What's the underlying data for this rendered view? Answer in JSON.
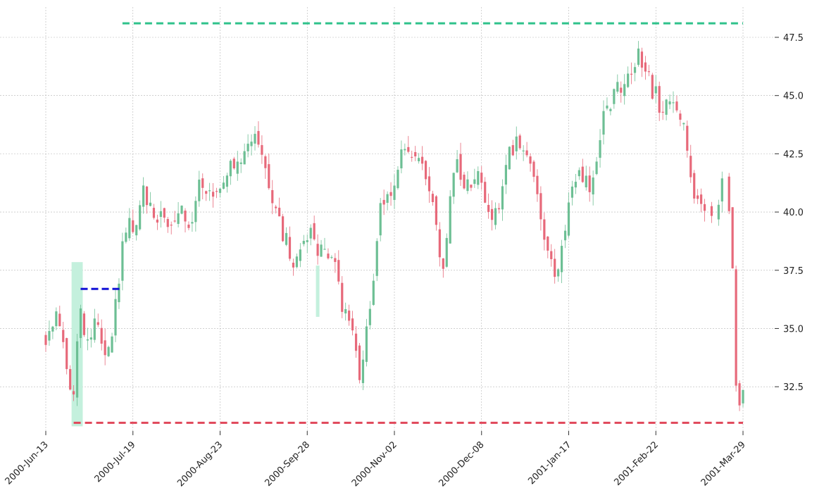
{
  "chart_data": {
    "type": "candlestick",
    "x_tick_labels": [
      "2000-Jun-13",
      "2000-Jul-19",
      "2000-Aug-23",
      "2000-Sep-28",
      "2000-Nov-02",
      "2000-Dec-08",
      "2001-Jan-17",
      "2001-Feb-22",
      "2001-Mar-29"
    ],
    "y_tick_labels": [
      "32.5",
      "35.0",
      "37.5",
      "40.0",
      "42.5",
      "45.0",
      "47.5"
    ],
    "y_ticks": [
      32.5,
      35.0,
      37.5,
      40.0,
      42.5,
      45.0,
      47.5
    ],
    "ylim": [
      30.6,
      48.8
    ],
    "bar_count": 201,
    "grid": true,
    "y_axis_side": "right",
    "colors": {
      "up": "#6dbf94",
      "down": "#e7697a",
      "highlight": "#c4f0dd",
      "resistance_line": "#2ec28b",
      "support_line": "#e0475a",
      "entry_line": "#1212d6"
    },
    "annotations": {
      "highlight_band": {
        "x_start": 7.4,
        "x_end": 10.6,
        "y_low": 30.8,
        "y_high": 37.85
      },
      "small_highlight": {
        "x_start": 77.5,
        "x_end": 78.5,
        "y_low": 35.5,
        "y_high": 37.7
      },
      "resistance_line": {
        "x_start": 22,
        "x_end": 200,
        "y": 48.1
      },
      "support_line": {
        "x_start": 8,
        "x_end": 200,
        "y": 30.95
      },
      "entry_line": {
        "x_start": 10,
        "x_end": 21.5,
        "y": 36.7
      }
    },
    "anchors": [
      [
        0,
        34.6
      ],
      [
        3,
        35.8
      ],
      [
        5,
        34.8
      ],
      [
        7,
        32.2
      ],
      [
        8,
        31.8
      ],
      [
        9,
        34.5
      ],
      [
        10,
        35.6
      ],
      [
        12,
        34.5
      ],
      [
        14,
        35.5
      ],
      [
        16,
        34.2
      ],
      [
        18,
        34.0
      ],
      [
        20,
        36.0
      ],
      [
        22,
        38.5
      ],
      [
        24,
        39.6
      ],
      [
        26,
        39.5
      ],
      [
        28,
        40.9
      ],
      [
        30,
        40.2
      ],
      [
        32,
        39.4
      ],
      [
        34,
        40.0
      ],
      [
        36,
        39.2
      ],
      [
        38,
        40.0
      ],
      [
        40,
        39.8
      ],
      [
        42,
        39.5
      ],
      [
        44,
        41.0
      ],
      [
        46,
        40.5
      ],
      [
        48,
        40.7
      ],
      [
        50,
        41.2
      ],
      [
        52,
        42.0
      ],
      [
        54,
        41.8
      ],
      [
        56,
        42.5
      ],
      [
        58,
        43.3
      ],
      [
        60,
        43.4
      ],
      [
        62,
        42.8
      ],
      [
        64,
        41.2
      ],
      [
        66,
        40.0
      ],
      [
        68,
        39.0
      ],
      [
        70,
        38.3
      ],
      [
        72,
        37.8
      ],
      [
        74,
        38.5
      ],
      [
        76,
        39.4
      ],
      [
        78,
        38.5
      ],
      [
        80,
        38.6
      ],
      [
        82,
        38.3
      ],
      [
        84,
        36.8
      ],
      [
        86,
        35.5
      ],
      [
        88,
        34.5
      ],
      [
        90,
        33.2
      ],
      [
        92,
        35.0
      ],
      [
        94,
        37.5
      ],
      [
        96,
        40.0
      ],
      [
        98,
        41.2
      ],
      [
        100,
        41.0
      ],
      [
        102,
        42.3
      ],
      [
        104,
        42.5
      ],
      [
        106,
        42.3
      ],
      [
        108,
        42.0
      ],
      [
        110,
        40.8
      ],
      [
        112,
        39.3
      ],
      [
        114,
        37.6
      ],
      [
        116,
        40.5
      ],
      [
        118,
        42.0
      ],
      [
        120,
        41.3
      ],
      [
        122,
        40.8
      ],
      [
        124,
        41.7
      ],
      [
        126,
        40.7
      ],
      [
        128,
        39.3
      ],
      [
        130,
        40.3
      ],
      [
        132,
        42.3
      ],
      [
        134,
        42.6
      ],
      [
        136,
        43.0
      ],
      [
        138,
        42.7
      ],
      [
        140,
        41.5
      ],
      [
        142,
        39.5
      ],
      [
        144,
        38.2
      ],
      [
        146,
        37.2
      ],
      [
        148,
        38.2
      ],
      [
        150,
        40.5
      ],
      [
        152,
        41.5
      ],
      [
        154,
        41.2
      ],
      [
        156,
        41.3
      ],
      [
        158,
        42.4
      ],
      [
        160,
        44.0
      ],
      [
        162,
        44.8
      ],
      [
        164,
        45.2
      ],
      [
        166,
        45.7
      ],
      [
        168,
        46.2
      ],
      [
        170,
        46.6
      ],
      [
        172,
        46.0
      ],
      [
        174,
        45.2
      ],
      [
        176,
        44.7
      ],
      [
        178,
        44.5
      ],
      [
        180,
        44.6
      ],
      [
        182,
        44.3
      ],
      [
        184,
        42.8
      ],
      [
        186,
        41.0
      ],
      [
        188,
        40.2
      ],
      [
        190,
        40.4
      ],
      [
        192,
        40.0
      ],
      [
        194,
        41.4
      ],
      [
        196,
        39.8
      ],
      [
        197,
        37.8
      ],
      [
        198,
        32.2
      ],
      [
        200,
        32.0
      ]
    ],
    "gap_range": [
      188,
      201
    ]
  }
}
